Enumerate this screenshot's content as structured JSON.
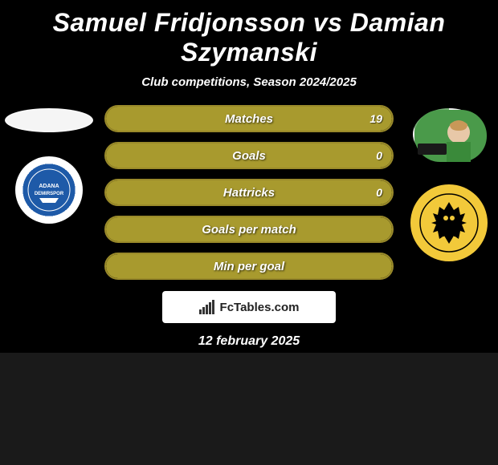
{
  "header": {
    "title": "Samuel Fridjonsson vs Damian Szymanski",
    "subtitle": "Club competitions, Season 2024/2025"
  },
  "players": {
    "left": {
      "name": "Samuel Fridjonsson",
      "club_name": "Adana Demirspor",
      "club_colors": {
        "primary": "#1e5aa8",
        "secondary": "#ffffff"
      }
    },
    "right": {
      "name": "Damian Szymanski",
      "club_name": "AEK",
      "club_colors": {
        "primary": "#f2c93a",
        "secondary": "#000000"
      }
    }
  },
  "stats": [
    {
      "label": "Matches",
      "left_value": "",
      "right_value": "19",
      "left_pct": 0,
      "right_pct": 100
    },
    {
      "label": "Goals",
      "left_value": "",
      "right_value": "0",
      "left_pct": 0,
      "right_pct": 100
    },
    {
      "label": "Hattricks",
      "left_value": "",
      "right_value": "0",
      "left_pct": 0,
      "right_pct": 100
    },
    {
      "label": "Goals per match",
      "left_value": "",
      "right_value": "",
      "left_pct": 0,
      "right_pct": 100
    },
    {
      "label": "Min per goal",
      "left_value": "",
      "right_value": "",
      "left_pct": 50,
      "right_pct": 50
    }
  ],
  "styling": {
    "stat_bar_height": 34,
    "stat_bar_radius": 17,
    "stat_bar_border_color": "#9a8a2a",
    "stat_fill_color": "#a89a2e",
    "stat_bar_bg": "#000000",
    "title_fontsize": 32,
    "subtitle_fontsize": 15,
    "stat_label_fontsize": 15,
    "background_color": "#000000",
    "text_color": "#ffffff"
  },
  "branding": {
    "label": "FcTables.com"
  },
  "footer": {
    "date": "12 february 2025"
  }
}
